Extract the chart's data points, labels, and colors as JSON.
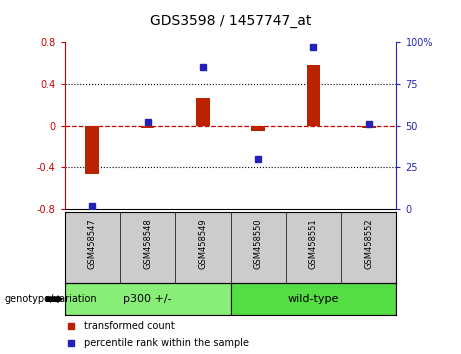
{
  "title": "GDS3598 / 1457747_at",
  "samples": [
    "GSM458547",
    "GSM458548",
    "GSM458549",
    "GSM458550",
    "GSM458551",
    "GSM458552"
  ],
  "bar_values": [
    -0.46,
    -0.02,
    0.27,
    -0.05,
    0.58,
    -0.02
  ],
  "dot_values": [
    2,
    52,
    85,
    30,
    97,
    51
  ],
  "ylim_left": [
    -0.8,
    0.8
  ],
  "ylim_right": [
    0,
    100
  ],
  "yticks_left": [
    -0.8,
    -0.4,
    0.0,
    0.4,
    0.8
  ],
  "yticks_right": [
    0,
    25,
    50,
    75,
    100
  ],
  "ytick_labels_right": [
    "0",
    "25",
    "50",
    "75",
    "100%"
  ],
  "bar_color": "#bb2200",
  "dot_color": "#2222bb",
  "zero_line_color": "#cc0000",
  "grid_color": "#000000",
  "groups": [
    {
      "label": "p300 +/-",
      "samples": [
        0,
        1,
        2
      ],
      "color": "#88ee77"
    },
    {
      "label": "wild-type",
      "samples": [
        3,
        4,
        5
      ],
      "color": "#55dd44"
    }
  ],
  "group_label": "genotype/variation",
  "legend_bar": "transformed count",
  "legend_dot": "percentile rank within the sample",
  "bg_color": "#ffffff",
  "plot_bg": "#ffffff",
  "tick_color_left": "#cc0000",
  "tick_color_right": "#2222bb",
  "sample_bg": "#cccccc"
}
